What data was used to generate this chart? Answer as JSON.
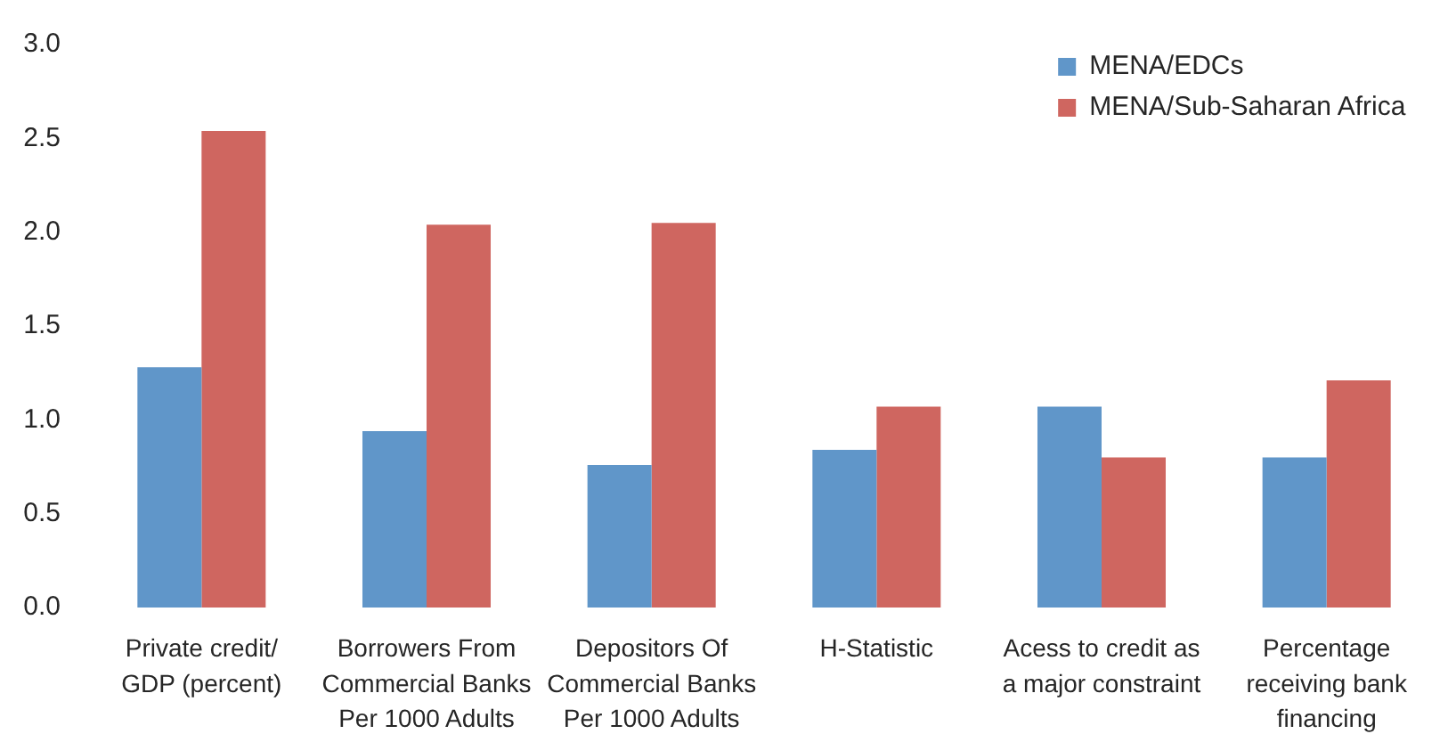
{
  "chart_data": {
    "type": "bar",
    "categories": [
      "Private credit/ GDP (percent)",
      "Borrowers From Commercial Banks Per 1000 Adults",
      "Depositors Of Commercial Banks Per 1000 Adults",
      "H-Statistic",
      "Acess to credit as a major constraint",
      "Percentage receiving bank financing"
    ],
    "series": [
      {
        "name": "MENA/EDCs",
        "color": "#6096c9",
        "values": [
          1.28,
          0.94,
          0.76,
          0.84,
          1.07,
          0.8
        ]
      },
      {
        "name": "MENA/Sub-Saharan Africa",
        "color": "#cf6660",
        "values": [
          2.54,
          2.04,
          2.05,
          1.07,
          0.8,
          1.21
        ]
      }
    ],
    "ylim": [
      0,
      3
    ],
    "yticks": [
      {
        "value": 0,
        "label": "0.0"
      },
      0.5,
      {
        "value": 1,
        "label": "1.0"
      },
      1.5,
      {
        "value": 2,
        "label": "2.0"
      },
      2.5,
      {
        "value": 3,
        "label": "3.0"
      }
    ],
    "legend": "top right"
  }
}
